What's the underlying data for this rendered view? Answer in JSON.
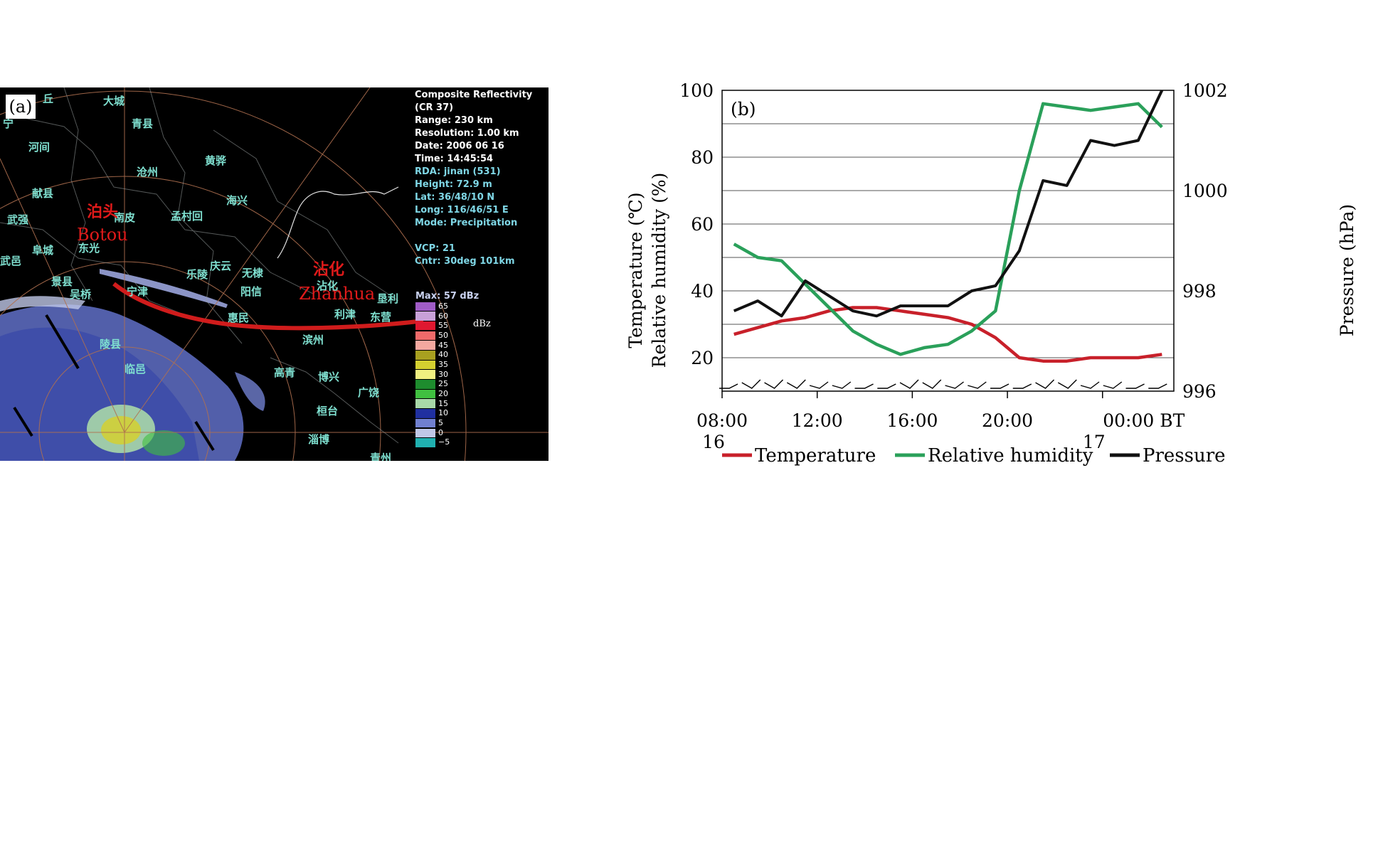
{
  "panel_a": {
    "label": "(a)",
    "info_lines": [
      {
        "text": "Composite Reflectivity",
        "color": "w"
      },
      {
        "text": "(CR 37)",
        "color": "w"
      },
      {
        "text": "Range: 230 km",
        "color": "w"
      },
      {
        "text": "Resolution: 1.00 km",
        "color": "w"
      },
      {
        "text": "Date: 2006 06 16",
        "color": "w"
      },
      {
        "text": "Time: 14:45:54",
        "color": "w"
      },
      {
        "text": "RDA: jinan (531)",
        "color": "c"
      },
      {
        "text": "Height: 72.9 m",
        "color": "c"
      },
      {
        "text": "Lat:  36/48/10 N",
        "color": "c"
      },
      {
        "text": "Long: 116/46/51 E",
        "color": "c"
      },
      {
        "text": "Mode: Precipitation",
        "color": "c"
      },
      {
        "text": "",
        "color": "c"
      },
      {
        "text": "VCP: 21",
        "color": "c"
      },
      {
        "text": "Cntr:  30deg 101km",
        "color": "c"
      }
    ],
    "scale_header": "Max: 57 dBz",
    "scale_unit": "dBz",
    "scale": [
      {
        "value": "65",
        "color": "#a05cc6"
      },
      {
        "value": "60",
        "color": "#c8a0d8"
      },
      {
        "value": "55",
        "color": "#e01830"
      },
      {
        "value": "50",
        "color": "#f06a6a"
      },
      {
        "value": "45",
        "color": "#f4a8a0"
      },
      {
        "value": "40",
        "color": "#a8a020"
      },
      {
        "value": "35",
        "color": "#d4d030"
      },
      {
        "value": "30",
        "color": "#f0f080"
      },
      {
        "value": "25",
        "color": "#1e8c2e"
      },
      {
        "value": "20",
        "color": "#40c040"
      },
      {
        "value": "15",
        "color": "#a8d8a8"
      },
      {
        "value": "10",
        "color": "#2030a0"
      },
      {
        "value": "5",
        "color": "#7080d0"
      },
      {
        "value": "0",
        "color": "#c0c8e8"
      },
      {
        "value": "−5",
        "color": "#20b0b0"
      }
    ],
    "cities": [
      {
        "name": "大城",
        "pos": [
          145,
          8
        ]
      },
      {
        "name": "青县",
        "pos": [
          185,
          40
        ]
      },
      {
        "name": "丘",
        "pos": [
          60,
          5
        ]
      },
      {
        "name": "宁",
        "pos": [
          4,
          40
        ]
      },
      {
        "name": "河间",
        "pos": [
          40,
          73
        ]
      },
      {
        "name": "沧州",
        "pos": [
          192,
          108
        ]
      },
      {
        "name": "黄骅",
        "pos": [
          288,
          92
        ]
      },
      {
        "name": "献县",
        "pos": [
          45,
          138
        ]
      },
      {
        "name": "海兴",
        "pos": [
          318,
          148
        ]
      },
      {
        "name": "南皮",
        "pos": [
          160,
          172
        ]
      },
      {
        "name": "孟村回",
        "pos": [
          240,
          170
        ]
      },
      {
        "name": "武强",
        "pos": [
          10,
          175
        ]
      },
      {
        "name": "阜城",
        "pos": [
          45,
          218
        ]
      },
      {
        "name": "东光",
        "pos": [
          110,
          215
        ]
      },
      {
        "name": "武邑",
        "pos": [
          0,
          233
        ]
      },
      {
        "name": "庆云",
        "pos": [
          295,
          240
        ]
      },
      {
        "name": "乐陵",
        "pos": [
          262,
          252
        ]
      },
      {
        "name": "无棣",
        "pos": [
          340,
          250
        ]
      },
      {
        "name": "景县",
        "pos": [
          72,
          262
        ]
      },
      {
        "name": "吴桥",
        "pos": [
          98,
          280
        ]
      },
      {
        "name": "宁津",
        "pos": [
          178,
          276
        ]
      },
      {
        "name": "阳信",
        "pos": [
          338,
          276
        ]
      },
      {
        "name": "沾化",
        "pos": [
          445,
          268
        ]
      },
      {
        "name": "垦利",
        "pos": [
          530,
          286
        ]
      },
      {
        "name": "惠民",
        "pos": [
          320,
          313
        ]
      },
      {
        "name": "利津",
        "pos": [
          470,
          308
        ]
      },
      {
        "name": "东营",
        "pos": [
          520,
          312
        ]
      },
      {
        "name": "陵县",
        "pos": [
          140,
          350
        ]
      },
      {
        "name": "滨州",
        "pos": [
          425,
          344
        ]
      },
      {
        "name": "临邑",
        "pos": [
          175,
          385
        ]
      },
      {
        "name": "高青",
        "pos": [
          385,
          390
        ]
      },
      {
        "name": "博兴",
        "pos": [
          447,
          396
        ]
      },
      {
        "name": "广饶",
        "pos": [
          503,
          418
        ]
      },
      {
        "name": "桓台",
        "pos": [
          445,
          444
        ]
      },
      {
        "name": "淄博",
        "pos": [
          433,
          484
        ]
      },
      {
        "name": "青州",
        "pos": [
          520,
          510
        ]
      }
    ],
    "red_labels": [
      {
        "cn": "泊头",
        "en": "Botou"
      },
      {
        "cn": "沾化",
        "en": "Zhanhua"
      }
    ]
  },
  "panel_b": {
    "label": "(b)",
    "left_axis_label_1": "Temperature (℃)",
    "left_axis_label_2": "Relative  humidity  (%)",
    "right_axis_label": "Pressure  (hPa)",
    "left_ticks": [
      "20",
      "40",
      "60",
      "80",
      "100"
    ],
    "right_ticks": [
      "996",
      "998",
      "1000",
      "1002"
    ],
    "x_ticks": [
      {
        "top": "08:00",
        "bottom": "16"
      },
      {
        "top": "12:00",
        "bottom": ""
      },
      {
        "top": "16:00",
        "bottom": ""
      },
      {
        "top": "20:00",
        "bottom": ""
      },
      {
        "top": "00:00  BT",
        "bottom": "17"
      }
    ],
    "legend": [
      "Temperature",
      "Relative  humidity",
      "Pressure"
    ]
  },
  "chart_data": {
    "type": "line",
    "x_unit": "hour (BT), 16-17 June 2006",
    "x": [
      8.5,
      9.5,
      10.5,
      11.5,
      12.5,
      13.5,
      14.5,
      15.5,
      16.5,
      17.5,
      18.5,
      19.5,
      20.5,
      21.5,
      22.5,
      23.5,
      24.5,
      25.5,
      26.5
    ],
    "ylim": [
      10,
      100
    ],
    "y2lim": [
      996,
      1002
    ],
    "series": [
      {
        "name": "Temperature",
        "color": "#c8202a",
        "axis": "left",
        "values": [
          27,
          29,
          31,
          32,
          34,
          35,
          35,
          34,
          33,
          32,
          30,
          26,
          20,
          19,
          19,
          20,
          20,
          20,
          21
        ]
      },
      {
        "name": "Relative  humidity",
        "color": "#2aa05a",
        "axis": "left",
        "values": [
          54,
          50,
          49,
          42,
          35,
          28,
          24,
          21,
          23,
          24,
          28,
          34,
          70,
          96,
          95,
          94,
          95,
          96,
          89
        ]
      },
      {
        "name": "Pressure",
        "color": "#111111",
        "axis": "right",
        "values": [
          997.6,
          997.8,
          997.5,
          998.2,
          997.9,
          997.6,
          997.5,
          997.7,
          997.7,
          997.7,
          998.0,
          998.1,
          998.8,
          1000.2,
          1000.1,
          1001.0,
          1000.9,
          1001.0,
          1002.0
        ]
      }
    ],
    "grid": true,
    "legend_position": "bottom"
  }
}
